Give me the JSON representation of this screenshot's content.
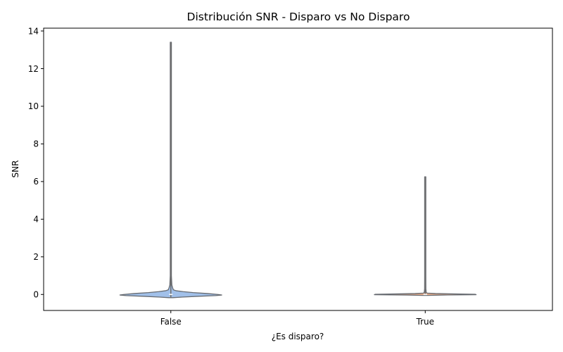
{
  "chart_data": {
    "type": "violin",
    "title": "Distribución SNR - Disparo vs No Disparo",
    "xlabel": "¿Es disparo?",
    "ylabel": "SNR",
    "categories": [
      "False",
      "True"
    ],
    "ylim": [
      -0.85,
      14.15
    ],
    "yticks": [
      0,
      2,
      4,
      6,
      8,
      10,
      12,
      14
    ],
    "grid": false,
    "violins": [
      {
        "category": "False",
        "color": "#a1c0e9",
        "min": -0.17,
        "max": 13.4,
        "median": 0.0,
        "q1": -0.02,
        "q3": 0.02,
        "profile": [
          [
            -0.17,
            0.02
          ],
          [
            -0.14,
            0.11
          ],
          [
            -0.1,
            0.26
          ],
          [
            -0.06,
            0.44
          ],
          [
            -0.03,
            0.5
          ],
          [
            0.0,
            0.46
          ],
          [
            0.05,
            0.36
          ],
          [
            0.1,
            0.22
          ],
          [
            0.15,
            0.12
          ],
          [
            0.2,
            0.05
          ],
          [
            0.25,
            0.025
          ],
          [
            0.35,
            0.018
          ],
          [
            0.5,
            0.01
          ],
          [
            1.0,
            0.005
          ],
          [
            2.0,
            0.004
          ],
          [
            5.0,
            0.003
          ],
          [
            10.0,
            0.003
          ],
          [
            13.4,
            0.002
          ]
        ]
      },
      {
        "category": "True",
        "color": "#e8ad8b",
        "min": -0.05,
        "max": 6.25,
        "median": 0.0,
        "q1": -0.01,
        "q3": 0.01,
        "profile": [
          [
            -0.05,
            0.02
          ],
          [
            -0.03,
            0.18
          ],
          [
            -0.01,
            0.5
          ],
          [
            0.01,
            0.49
          ],
          [
            0.03,
            0.3
          ],
          [
            0.05,
            0.1
          ],
          [
            0.07,
            0.02
          ],
          [
            0.1,
            0.01
          ],
          [
            0.3,
            0.006
          ],
          [
            1.0,
            0.004
          ],
          [
            3.0,
            0.003
          ],
          [
            6.25,
            0.002
          ]
        ]
      }
    ]
  }
}
